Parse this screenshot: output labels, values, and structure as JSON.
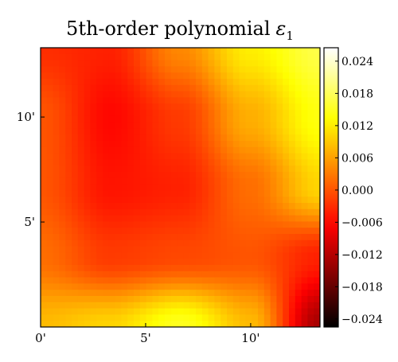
{
  "chart_data": {
    "type": "heatmap",
    "title": "5th-order polynomial",
    "title_symbol": "ε",
    "title_subscript": "1",
    "xlabel": "",
    "ylabel": "",
    "x_ticks": [
      "0'",
      "5'",
      "10'"
    ],
    "x_tick_values": [
      0,
      5,
      10
    ],
    "y_ticks": [
      "5'",
      "10'"
    ],
    "y_tick_values": [
      5,
      10
    ],
    "xlim": [
      0,
      13.3
    ],
    "ylim": [
      0,
      13.3
    ],
    "colormap": "hot",
    "colorbar": {
      "ticks": [
        "−0.024",
        "−0.018",
        "−0.012",
        "−0.006",
        "0.000",
        "0.006",
        "0.012",
        "0.018",
        "0.024"
      ],
      "tick_values": [
        -0.024,
        -0.018,
        -0.012,
        -0.006,
        0.0,
        0.006,
        0.012,
        0.018,
        0.024
      ],
      "range": [
        -0.0255,
        0.0265
      ]
    },
    "field_description": "smooth residual field; minimum near (3.5', 8.5') about -0.006; maxima near top-right corner (~0.016) and bottom-center (~0.015); dark spot near bottom-right corner (~-0.015)",
    "field_samples": {
      "x": [
        0,
        3.3,
        6.6,
        10,
        13.3
      ],
      "y": [
        0,
        3.3,
        6.6,
        10,
        13.3
      ],
      "values_rows_bottom_to_top": [
        [
          0.008,
          0.01,
          0.015,
          0.008,
          -0.013
        ],
        [
          0.002,
          -0.002,
          -0.001,
          0.0,
          -0.004
        ],
        [
          0.0,
          -0.005,
          -0.004,
          0.002,
          0.01
        ],
        [
          0.0,
          -0.006,
          -0.002,
          0.007,
          0.014
        ],
        [
          -0.003,
          -0.004,
          0.004,
          0.012,
          0.017
        ]
      ]
    }
  }
}
